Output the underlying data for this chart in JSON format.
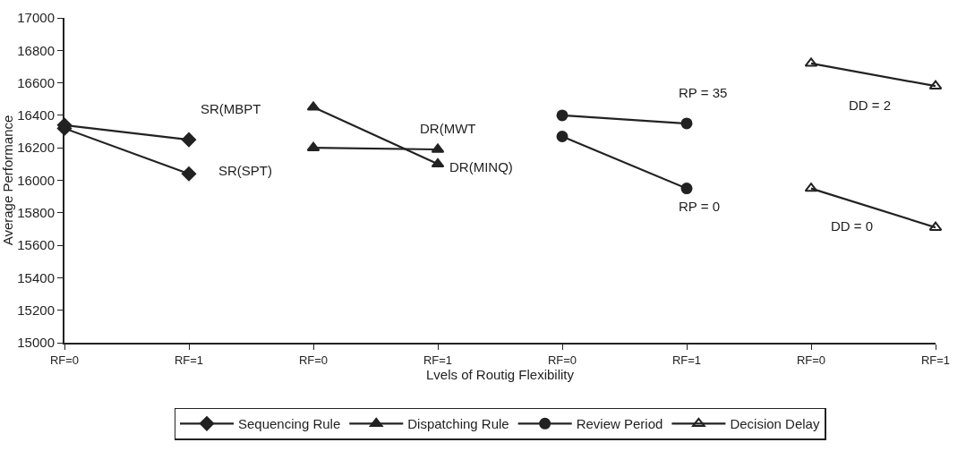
{
  "chart_data": {
    "type": "line",
    "ylabel": "Average Performance",
    "xlabel": "Lvels of Routig Flexibility",
    "categories": [
      "RF=0",
      "RF=1",
      "RF=0",
      "RF=1",
      "RF=0",
      "RF=1",
      "RF=0",
      "RF=1"
    ],
    "ylim": [
      15000,
      17000
    ],
    "yticks": [
      15000,
      15200,
      15400,
      15600,
      15800,
      16000,
      16200,
      16400,
      16600,
      16800,
      17000
    ],
    "grid": false,
    "legend": "bottom",
    "line_style": "solid",
    "series": [
      {
        "name": "Sequencing Rule",
        "color": "#222222",
        "marker": "diamond",
        "values": [
          16340,
          16250,
          null,
          null,
          null,
          null,
          null,
          null
        ]
      },
      {
        "color": "#222222",
        "marker": "diamond",
        "values": [
          16320,
          16040,
          null,
          null,
          null,
          null,
          null,
          null
        ]
      },
      {
        "name": "Dispatching Rule",
        "color": "#222222",
        "marker": "triangle",
        "values": [
          null,
          null,
          16450,
          16100,
          null,
          null,
          null,
          null
        ]
      },
      {
        "color": "#222222",
        "marker": "triangle",
        "values": [
          null,
          null,
          16200,
          16190,
          null,
          null,
          null,
          null
        ]
      },
      {
        "name": "Review Period",
        "color": "#222222",
        "marker": "circle",
        "values": [
          null,
          null,
          null,
          null,
          16400,
          16350,
          null,
          null
        ]
      },
      {
        "color": "#222222",
        "marker": "circle",
        "values": [
          null,
          null,
          null,
          null,
          16270,
          15950,
          null,
          null
        ]
      },
      {
        "name": "Decision Delay",
        "color": "#222222",
        "marker": "triangle",
        "values": [
          null,
          null,
          null,
          null,
          null,
          null,
          16720,
          16580
        ]
      },
      {
        "color": "#222222",
        "marker": "triangle",
        "values": [
          null,
          null,
          null,
          null,
          null,
          null,
          15950,
          15710
        ]
      }
    ],
    "annotations": [
      "SR(MBPT",
      "SR(SPT)",
      "DR(MWT",
      "DR(MINQ)",
      "RP = 35",
      "RP = 0",
      "DD = 2",
      "DD = 0"
    ]
  }
}
